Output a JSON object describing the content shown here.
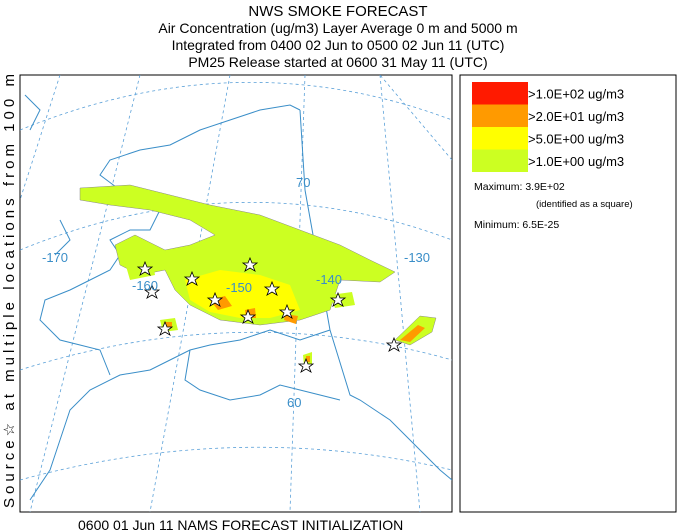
{
  "header": {
    "title": "NWS SMOKE FORECAST",
    "lines": [
      "Air Concentration (ug/m3) Layer Average    0 m and  5000 m",
      "Integrated from 0400 02 Jun to 0500 02 Jun 11 (UTC)",
      "PM25 Release started at 0600 31 May 11 (UTC)"
    ]
  },
  "side_label": "Source☆ at multiple locations from  100 m",
  "legend": {
    "entries": [
      {
        "label": ">1.0E+02 ug/m3",
        "color": "#ff1a00"
      },
      {
        "label": ">2.0E+01 ug/m3",
        "color": "#ff9a00"
      },
      {
        "label": ">5.0E+00 ug/m3",
        "color": "#ffff00"
      },
      {
        "label": ">1.0E+00 ug/m3",
        "color": "#ccff22"
      }
    ],
    "maximum": "Maximum: 3.9E+02",
    "maximum_note": "(identified as a square)",
    "minimum": "Minimum: 6.5E-25"
  },
  "map": {
    "labels": [
      "70",
      "-170",
      "-160",
      "-150",
      "-140",
      "-130",
      "60"
    ]
  },
  "footer": "0600 01 Jun 11 NAMS FORECAST INITIALIZATION"
}
